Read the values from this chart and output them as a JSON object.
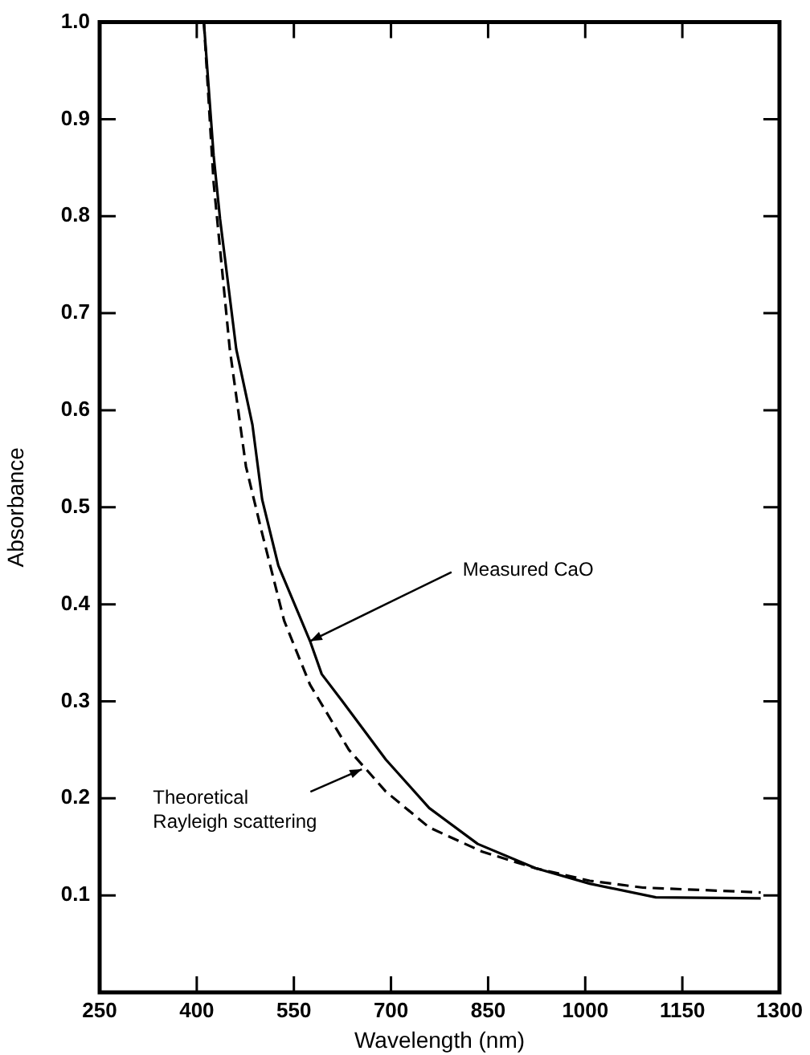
{
  "chart_data": {
    "type": "line",
    "xlabel": "Wavelength (nm)",
    "ylabel": "Absorbance",
    "xlim": [
      250,
      1300
    ],
    "xticks": [
      250,
      400,
      550,
      700,
      850,
      1000,
      1150,
      1300
    ],
    "ylim": [
      0,
      1.0
    ],
    "yticks": [
      {
        "value": 0.1,
        "label": "0.1"
      },
      {
        "value": 0.2,
        "label": "0.2"
      },
      {
        "value": 0.3,
        "label": "0.3"
      },
      {
        "value": 0.4,
        "label": "0.4"
      },
      {
        "value": 0.5,
        "label": "0.5"
      },
      {
        "value": 0.6,
        "label": "0.6"
      },
      {
        "value": 0.7,
        "label": "0.7"
      },
      {
        "value": 0.8,
        "label": "0.8"
      },
      {
        "value": 0.9,
        "label": "0.9"
      },
      {
        "value": 1.0,
        "label": "1.0"
      }
    ],
    "grid": false,
    "legend": false,
    "marker": "none",
    "series": [
      {
        "color": "#000000",
        "line_style": "solid",
        "x": [
          411,
          426,
          436,
          461,
          486,
          501,
          526,
          575,
          593,
          625,
          692,
          759,
          834,
          923,
          1007,
          1109,
          1271
        ],
        "values": [
          1.0,
          0.863,
          0.797,
          0.663,
          0.585,
          0.508,
          0.44,
          0.362,
          0.328,
          0.3,
          0.24,
          0.19,
          0.153,
          0.128,
          0.112,
          0.098,
          0.097
        ]
      },
      {
        "color": "#000000",
        "line_style": "dashed",
        "x": [
          411,
          426,
          451,
          476,
          501,
          535,
          575,
          635,
          692,
          759,
          841,
          923,
          1007,
          1089,
          1271
        ],
        "values": [
          1.0,
          0.835,
          0.663,
          0.542,
          0.473,
          0.383,
          0.317,
          0.25,
          0.207,
          0.17,
          0.145,
          0.128,
          0.115,
          0.108,
          0.103
        ]
      }
    ],
    "annotations": [
      {
        "text": "Measured CaO",
        "x": 575,
        "y": 0.362
      },
      {
        "text": "Theoretical\nRayleigh scattering",
        "x": 655,
        "y": 0.23
      }
    ]
  }
}
